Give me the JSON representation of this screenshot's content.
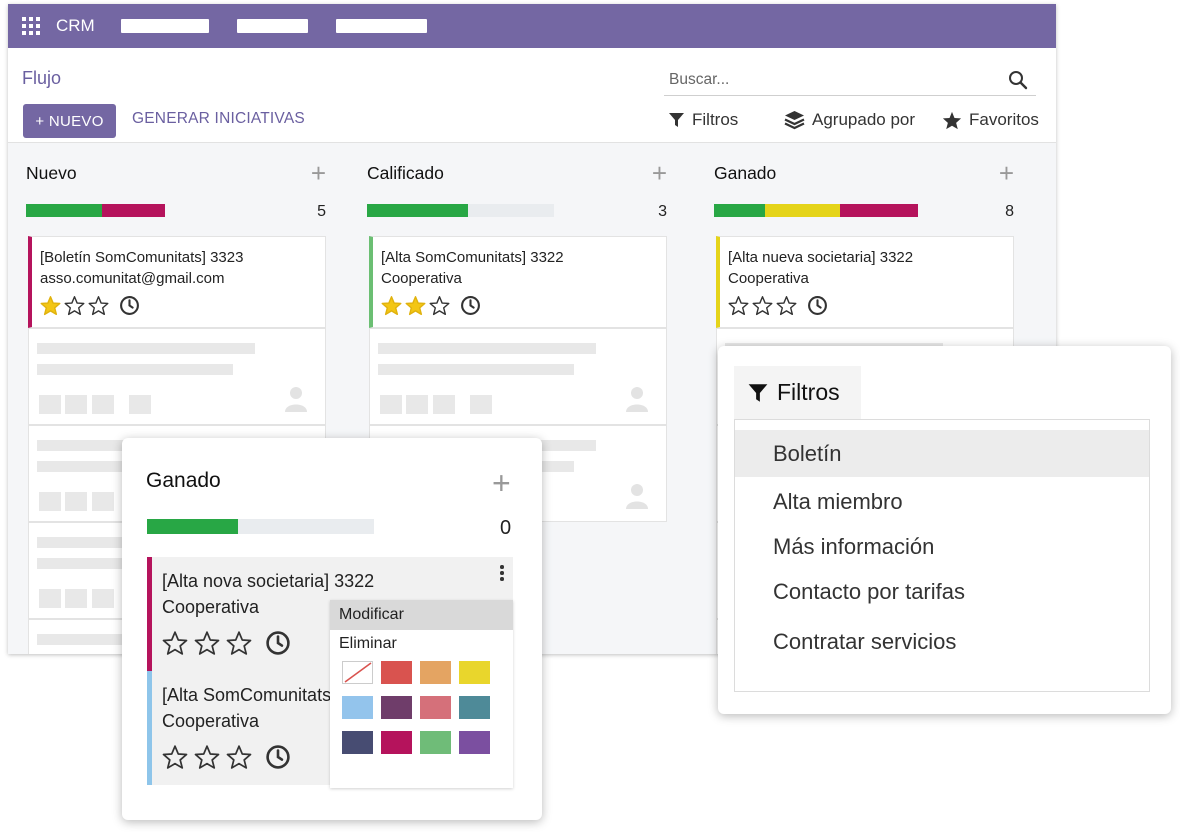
{
  "app": {
    "name": "CRM"
  },
  "control": {
    "breadcrumb": "Flujo",
    "new_label": "+ NUEVO",
    "generate_label": "GENERAR INICIATIVAS",
    "search_placeholder": "Buscar...",
    "filters_label": "Filtros",
    "group_label": "Agrupado por",
    "favorites_label": "Favoritos"
  },
  "columns": [
    {
      "title": "Nuevo",
      "count": "5",
      "progress": [
        {
          "color": "#28a745",
          "fraction": 0.55
        },
        {
          "color": "#b5135c",
          "fraction": 0.45
        }
      ],
      "card": {
        "title": "[Boletín SomComunitats] 3323",
        "subtitle": "asso.comunitat@gmail.com",
        "stars": 1,
        "accent": "#b5135c"
      }
    },
    {
      "title": "Calificado",
      "count": "3",
      "progress": [
        {
          "color": "#28a745",
          "fraction": 0.54
        }
      ],
      "card": {
        "title": "[Alta SomComunitats] 3322",
        "subtitle": "Cooperativa",
        "stars": 2,
        "accent": "#6bbf73"
      }
    },
    {
      "title": "Ganado",
      "count": "8",
      "progress": [
        {
          "color": "#28a745",
          "fraction": 0.25
        },
        {
          "color": "#e5d41a",
          "fraction": 0.37
        },
        {
          "color": "#b5135c",
          "fraction": 0.38
        }
      ],
      "card": {
        "title": "[Alta nueva societaria] 3322",
        "subtitle": "Cooperativa",
        "stars": 0,
        "accent": "#e5d41a"
      }
    }
  ],
  "zoom_column": {
    "title": "Ganado",
    "count": "0",
    "progress": 0.4,
    "cards": [
      {
        "title": "[Alta nova societaria] 3322",
        "subtitle": "Cooperativa",
        "accent": "#b5135c",
        "stars": 0
      },
      {
        "title": "[Alta SomComunitats] 3322",
        "subtitle": "Cooperativa",
        "accent": "#8ec5ea",
        "stars": 0
      }
    ],
    "menu": {
      "edit_label": "Modificar",
      "delete_label": "Eliminar"
    },
    "swatches": [
      "none",
      "#d9534f",
      "#e4a462",
      "#e9d62c",
      "#93c4ec",
      "#6f3d6a",
      "#d5707a",
      "#4e8a98",
      "#474c72",
      "#b5135c",
      "#6fbc78",
      "#7b4fa0"
    ]
  },
  "filters_popup": {
    "tab_label": "Filtros",
    "items": [
      "Boletín",
      "Alta miembro",
      "Más información",
      "Contacto por tarifas",
      "Contratar servicios"
    ],
    "highlighted": 0
  }
}
